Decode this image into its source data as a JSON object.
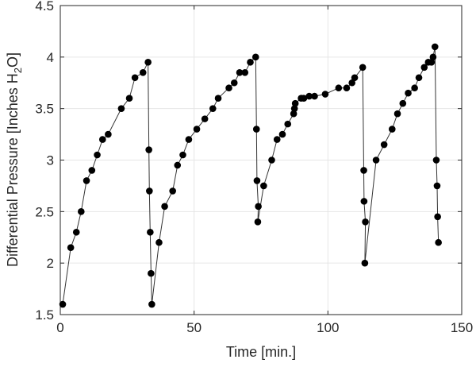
{
  "chart_data": {
    "type": "line",
    "title": "",
    "xlabel": "Time [min.]",
    "ylabel": {
      "prefix": "Differential Pressure [Inches H",
      "subscript": "2",
      "suffix": "O]"
    },
    "xlim": [
      0,
      150
    ],
    "ylim": [
      1.5,
      4.5
    ],
    "xticks": [
      0,
      50,
      100,
      150
    ],
    "yticks": [
      1.5,
      2,
      2.5,
      3,
      3.5,
      4,
      4.5
    ],
    "xtick_labels": [
      "0",
      "50",
      "100",
      "150"
    ],
    "ytick_labels": [
      "1.5",
      "2",
      "2.5",
      "3",
      "3.5",
      "4",
      "4.5"
    ],
    "grid": true,
    "line_color": "#000000",
    "marker": "circle",
    "series": [
      {
        "name": "Differential Pressure",
        "x": [
          0.9,
          3.9,
          6,
          7.8,
          9.8,
          11.8,
          13.8,
          15.8,
          17.9,
          22.8,
          25.8,
          27.9,
          30.9,
          32.8,
          33.1,
          33.3,
          33.6,
          33.9,
          34.2,
          36.9,
          39,
          42,
          43.8,
          45.8,
          48,
          51,
          54,
          57,
          59,
          63,
          65,
          67,
          69,
          71,
          73,
          73.3,
          73.5,
          74,
          73.8,
          76,
          79,
          81,
          83,
          85,
          87.2,
          87.5,
          87.8,
          90,
          91,
          93,
          95,
          99,
          104,
          107,
          109,
          110,
          113,
          113.4,
          113.5,
          114,
          113.8,
          118,
          121,
          124,
          126,
          128,
          130,
          132.4,
          134,
          136,
          137.5,
          138.7,
          139.3,
          140,
          140.5,
          140.8,
          141,
          141.3
        ],
        "y": [
          1.6,
          2.15,
          2.3,
          2.5,
          2.8,
          2.9,
          3.05,
          3.2,
          3.25,
          3.5,
          3.6,
          3.8,
          3.85,
          3.95,
          3.1,
          2.7,
          2.3,
          1.9,
          1.6,
          2.2,
          2.55,
          2.7,
          2.95,
          3.05,
          3.2,
          3.3,
          3.4,
          3.5,
          3.6,
          3.7,
          3.75,
          3.85,
          3.85,
          3.95,
          4.0,
          3.3,
          2.8,
          2.55,
          2.4,
          2.75,
          3.0,
          3.2,
          3.25,
          3.35,
          3.45,
          3.5,
          3.55,
          3.6,
          3.6,
          3.62,
          3.62,
          3.64,
          3.7,
          3.7,
          3.75,
          3.8,
          3.9,
          2.9,
          2.6,
          2.4,
          2.0,
          3.0,
          3.15,
          3.3,
          3.45,
          3.55,
          3.65,
          3.7,
          3.8,
          3.9,
          3.95,
          3.95,
          4.0,
          4.1,
          3.0,
          2.75,
          2.45,
          2.2
        ]
      }
    ]
  }
}
